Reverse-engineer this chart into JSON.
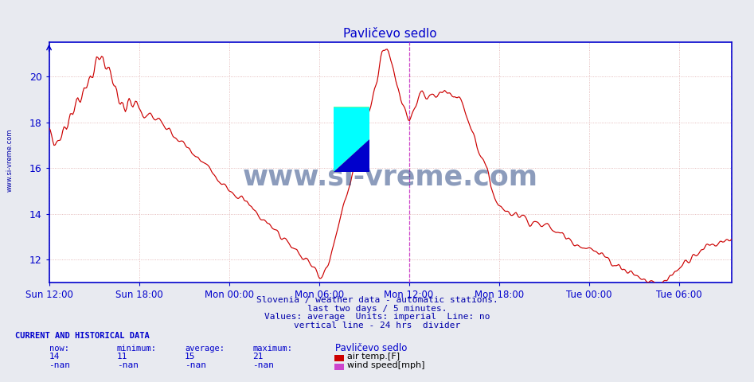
{
  "title": "Pavličevo sedlo",
  "bg_color": "#e8eaf0",
  "plot_bg_color": "#ffffff",
  "line_color": "#cc0000",
  "grid_color_h": "#ddaaaa",
  "grid_color_v": "#ddaaaa",
  "axis_color": "#0000cc",
  "text_color": "#0000aa",
  "vline_color": "#cc44cc",
  "ymin": 11.0,
  "ymax": 21.5,
  "yticks": [
    12,
    14,
    16,
    18,
    20
  ],
  "xtick_hours": [
    0,
    6,
    12,
    18,
    24,
    30,
    36,
    42
  ],
  "xlabel_times": [
    "Sun 12:00",
    "Sun 18:00",
    "Mon 00:00",
    "Mon 06:00",
    "Mon 12:00",
    "Mon 18:00",
    "Tue 00:00",
    "Tue 06:00"
  ],
  "total_hours": 45.5,
  "watermark": "www.si-vreme.com",
  "watermark_color": "#1a3a7a",
  "footer_line1": "Slovenia / weather data - automatic stations.",
  "footer_line2": "last two days / 5 minutes.",
  "footer_line3": "Values: average  Units: imperial  Line: no",
  "footer_line4": "vertical line - 24 hrs  divider",
  "cur_label": "CURRENT AND HISTORICAL DATA",
  "now_val": "14",
  "min_val": "11",
  "avg_val": "15",
  "max_val": "21",
  "legend1_color": "#cc0000",
  "legend1_label": "air temp.[F]",
  "legend2_color": "#cc44cc",
  "legend2_label": "wind speed[mph]",
  "sidebar_text": "www.si-vreme.com",
  "sidebar_color": "#0000aa",
  "vline1_hour": 24,
  "vline2_hour": 45.5,
  "logo_yellow": "#ffff00",
  "logo_cyan": "#00ffff",
  "logo_blue": "#0000cc"
}
